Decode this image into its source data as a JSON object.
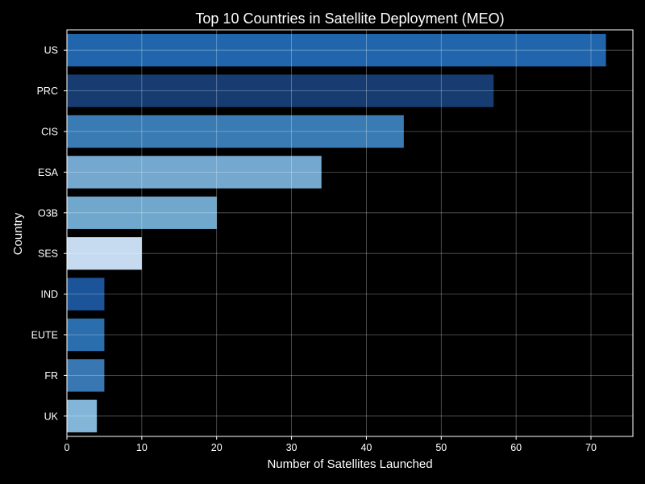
{
  "chart_data": {
    "type": "bar",
    "orientation": "horizontal",
    "title": "Top 10 Countries in Satellite Deployment (MEO)",
    "xlabel": "Number of Satellites Launched",
    "ylabel": "Country",
    "categories": [
      "US",
      "PRC",
      "CIS",
      "ESA",
      "O3B",
      "SES",
      "IND",
      "EUTE",
      "FR",
      "UK"
    ],
    "values": [
      72,
      57,
      45,
      34,
      20,
      10,
      5,
      5,
      5,
      4
    ],
    "colors": [
      "#2166ac",
      "#163c71",
      "#3a7bb4",
      "#74a8cf",
      "#6fa8cc",
      "#c6dbef",
      "#1c5499",
      "#2a6eae",
      "#3877b2",
      "#82b5d8"
    ],
    "xlim": [
      0,
      75.6
    ],
    "xticks": [
      0,
      10,
      20,
      30,
      40,
      50,
      60,
      70
    ],
    "grid": true,
    "background": "#000000",
    "text_color": "#ffffff"
  }
}
